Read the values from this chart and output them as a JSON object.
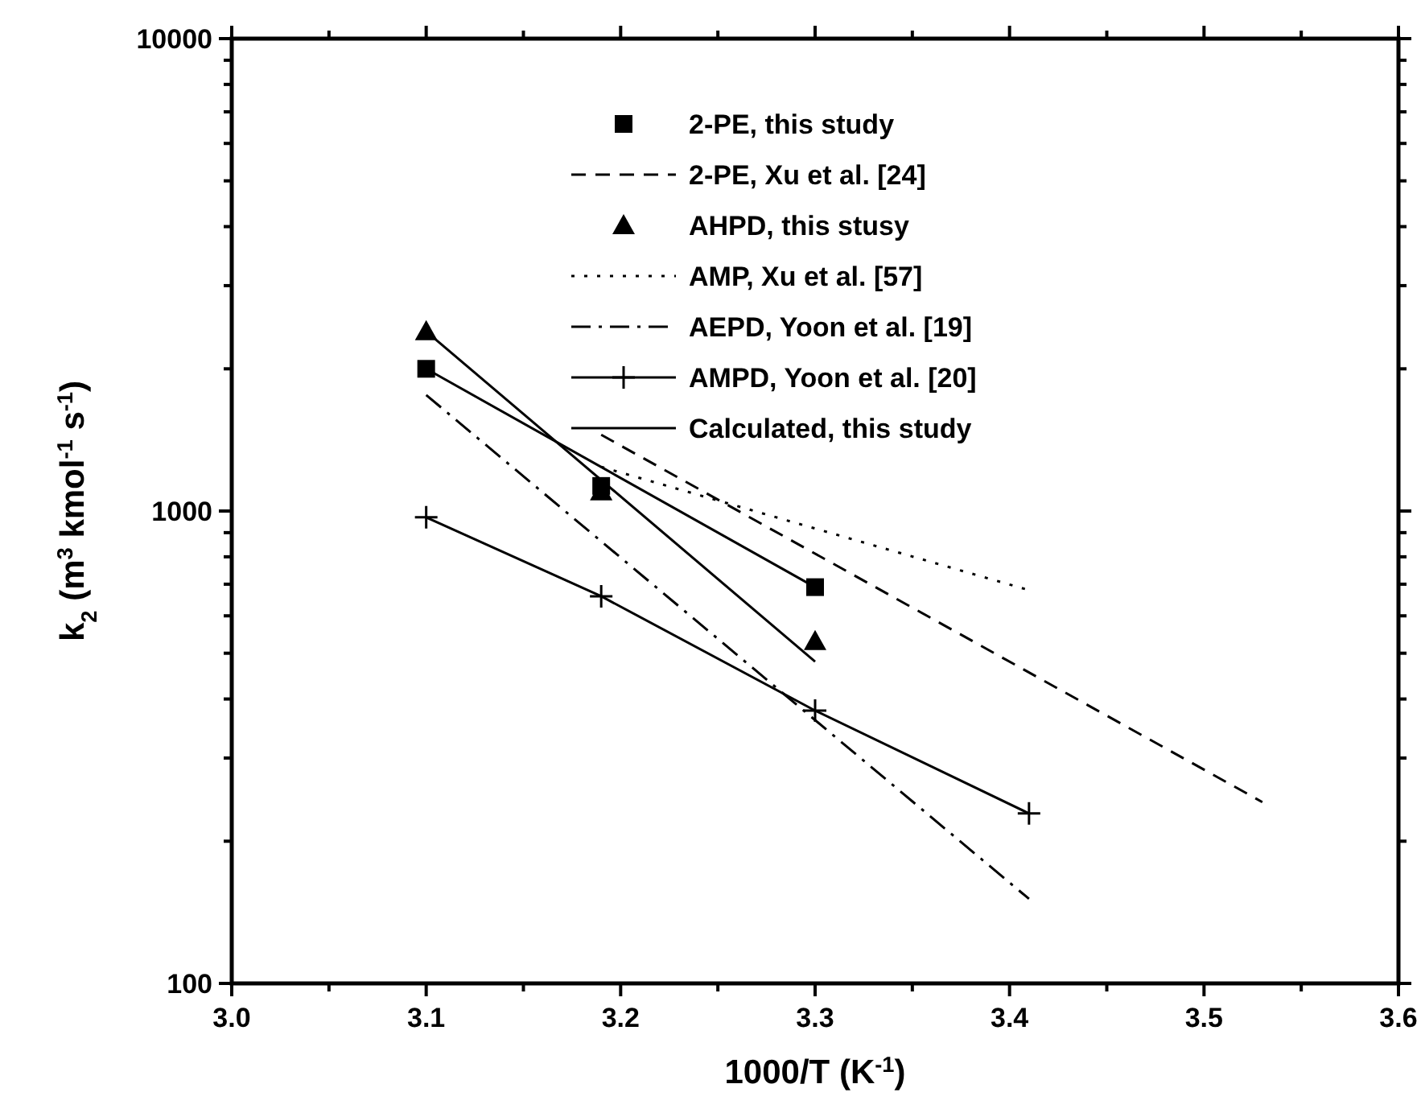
{
  "chart_data": {
    "type": "line",
    "xlabel": "1000/T (K$^{-1}$)",
    "ylabel": "k$_{2}$ (m$^{3}$ kmol$^{-1}$ s$^{-1}$)",
    "log": "y",
    "xlim": [
      3.0,
      3.6
    ],
    "ylim": [
      100,
      10000
    ],
    "xticks": [
      {
        "value": 3.0,
        "label": "3.0"
      },
      {
        "value": 3.05,
        "label": null
      },
      3.1,
      {
        "value": 3.15,
        "label": null
      },
      3.2,
      {
        "value": 3.25,
        "label": null
      },
      3.3,
      {
        "value": 3.35,
        "label": null
      },
      3.4,
      {
        "value": 3.45,
        "label": null
      },
      3.5,
      {
        "value": 3.55,
        "label": null
      },
      3.6
    ],
    "yticks": [
      100,
      {
        "value": 200,
        "label": null
      },
      {
        "value": 300,
        "label": null
      },
      {
        "value": 400,
        "label": null
      },
      {
        "value": 500,
        "label": null
      },
      {
        "value": 600,
        "label": null
      },
      {
        "value": 700,
        "label": null
      },
      {
        "value": 800,
        "label": null
      },
      {
        "value": 900,
        "label": null
      },
      1000,
      {
        "value": 2000,
        "label": null
      },
      {
        "value": 3000,
        "label": null
      },
      {
        "value": 4000,
        "label": null
      },
      {
        "value": 5000,
        "label": null
      },
      {
        "value": 6000,
        "label": null
      },
      {
        "value": 7000,
        "label": null
      },
      {
        "value": 8000,
        "label": null
      },
      {
        "value": 9000,
        "label": null
      },
      10000
    ],
    "grid": false,
    "legend": "top right",
    "series": [
      {
        "name": "2-PE, this study",
        "type": "scatter",
        "marker": "square",
        "color": "#000000",
        "x": [
          3.1,
          3.19,
          3.3
        ],
        "values": [
          2000,
          1130,
          690
        ]
      },
      {
        "name": "2-PE, Xu et al. [24]",
        "line_style": "dashed",
        "color": "#000000",
        "x": [
          3.19,
          3.53
        ],
        "values": [
          1450,
          242
        ]
      },
      {
        "name": "AHPD, this stusy",
        "type": "scatter",
        "marker": "triangle",
        "color": "#000000",
        "x": [
          3.1,
          3.19,
          3.3
        ],
        "values": [
          2400,
          1100,
          530
        ]
      },
      {
        "name": "AMP, Xu et al. [57]",
        "line_style": "dotted",
        "color": "#000000",
        "x": [
          3.19,
          3.41
        ],
        "values": [
          1240,
          680
        ]
      },
      {
        "name": "AEPD, Yoon et al. [19]",
        "line_style": "dashdot",
        "color": "#000000",
        "x": [
          3.1,
          3.41
        ],
        "values": [
          1760,
          151
        ]
      },
      {
        "name": "AMPD, Yoon et al. [20]",
        "marker": "cross",
        "line_style": "solid",
        "color": "#000000",
        "x": [
          3.1,
          3.19,
          3.3,
          3.41
        ],
        "values": [
          970,
          660,
          378,
          229
        ]
      },
      {
        "name": "Calculated, this study",
        "line_style": "solid",
        "color": "#000000",
        "x": [
          3.1,
          3.3
        ],
        "values": [
          2000,
          690
        ]
      },
      {
        "line_style": "solid",
        "color": "#000000",
        "x": [
          3.1,
          3.3
        ],
        "values": [
          2400,
          480
        ]
      }
    ]
  }
}
